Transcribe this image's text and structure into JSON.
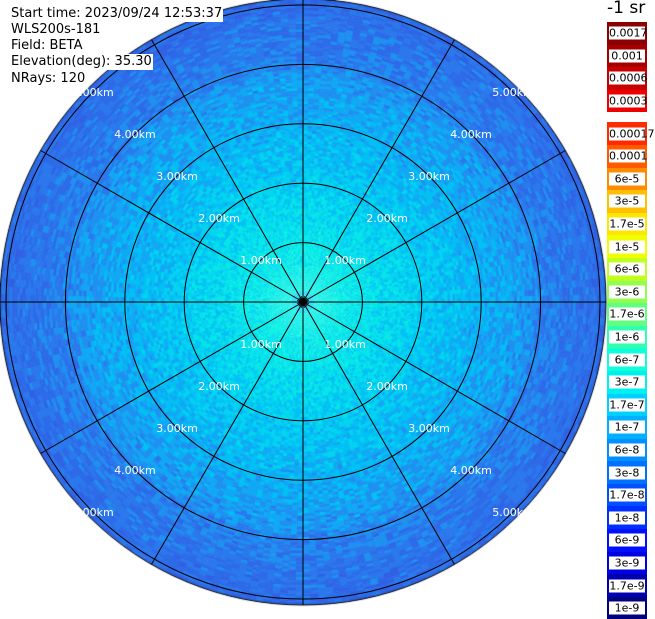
{
  "info": {
    "start_time": "Start time: 2023/09/24 12:53:37",
    "instrument": "WLS200s-181",
    "field": "Field: BETA",
    "elevation": "Elevation(deg): 35.30",
    "nrays": "NRays: 120"
  },
  "colorbar": {
    "units": "-1 sr",
    "upper_segments": [
      {
        "label": "0.0017",
        "color": "#8b0000"
      },
      {
        "label": "0.001",
        "color": "#a40000"
      },
      {
        "label": "0.0006",
        "color": "#c80000"
      },
      {
        "label": "0.0003",
        "color": "#ee0000"
      }
    ],
    "lower_segments": [
      {
        "label": "0.00017",
        "color": "#ff2a00"
      },
      {
        "label": "0.0001",
        "color": "#ff5a00"
      },
      {
        "label": "6e-5",
        "color": "#ff8c00"
      },
      {
        "label": "3e-5",
        "color": "#ffbe00"
      },
      {
        "label": "1.7e-5",
        "color": "#ffe600"
      },
      {
        "label": "1e-5",
        "color": "#f0ff00"
      },
      {
        "label": "6e-6",
        "color": "#c0ff20"
      },
      {
        "label": "3e-6",
        "color": "#90ff50"
      },
      {
        "label": "1.7e-6",
        "color": "#60ff80"
      },
      {
        "label": "1e-6",
        "color": "#30ffb0"
      },
      {
        "label": "6e-7",
        "color": "#10ffd8"
      },
      {
        "label": "3e-7",
        "color": "#00f0f0"
      },
      {
        "label": "1.7e-7",
        "color": "#00d0ff"
      },
      {
        "label": "1e-7",
        "color": "#00b0ff"
      },
      {
        "label": "6e-8",
        "color": "#0090ff"
      },
      {
        "label": "3e-8",
        "color": "#0070ff"
      },
      {
        "label": "1.7e-8",
        "color": "#0050ff"
      },
      {
        "label": "1e-8",
        "color": "#0030ff"
      },
      {
        "label": "6e-9",
        "color": "#0010ff"
      },
      {
        "label": "3e-9",
        "color": "#0000e0"
      },
      {
        "label": "1.7e-9",
        "color": "#0000b0"
      },
      {
        "label": "1e-9",
        "color": "#000080"
      }
    ]
  },
  "range_labels": [
    "1.00km",
    "2.00km",
    "3.00km",
    "4.00km",
    "5.00km"
  ],
  "plot_colors": {
    "near": "#00f0e0",
    "mid": "#00c8f0",
    "far": "#1e78f0",
    "outer": "#2a64e8",
    "grid": "#000000",
    "label_text": "#ffffff"
  },
  "rings_km": [
    1,
    2,
    3,
    4,
    5
  ],
  "max_range_km": 5.1
}
